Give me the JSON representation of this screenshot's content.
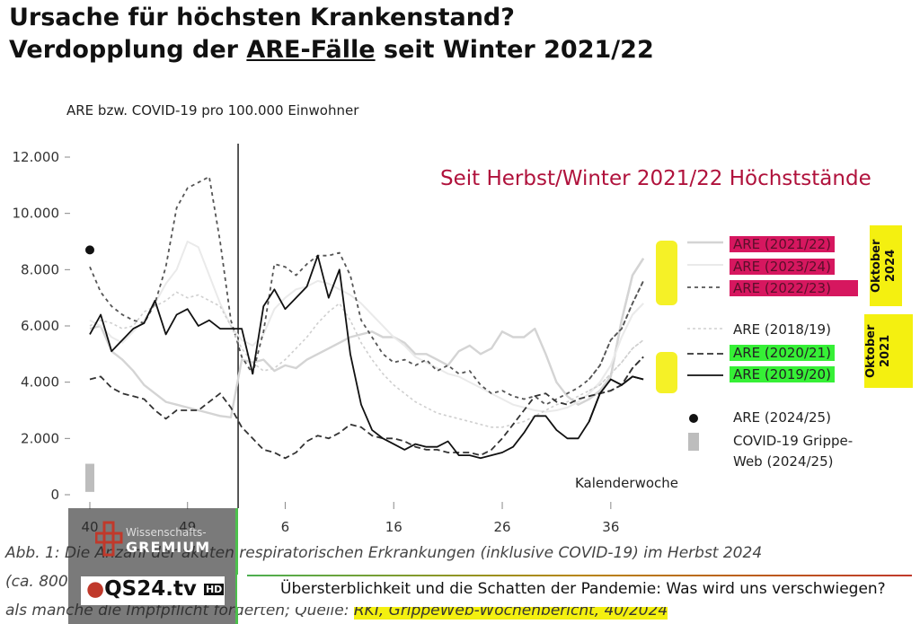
{
  "title": {
    "line1": "Ursache für höchsten Krankenstand?",
    "line2_prefix": "Verdopplung der ",
    "line2_underlined": "ARE-Fälle",
    "line2_suffix": " seit Winter 2021/22"
  },
  "chart_data": {
    "type": "line",
    "ylabel": "ARE bzw. COVID-19 pro 100.000 Einwohner",
    "xlabel": "Kalenderwoche",
    "annotation": "Seit Herbst/Winter 2021/22 Höchststände",
    "ylim": [
      0,
      12000
    ],
    "y_ticks": [
      "0",
      "2.000",
      "4.000",
      "6.000",
      "8.000",
      "10.000",
      "12.000"
    ],
    "x_ticks": [
      "40",
      "49",
      "6",
      "16",
      "26",
      "36"
    ],
    "x_tick_positions": [
      0,
      9,
      18,
      28,
      38,
      48
    ],
    "x_count": 52,
    "year_boundary_index": 13,
    "series": [
      {
        "name": "ARE (2021/22)",
        "color": "#d4d4d4",
        "dash": "",
        "width": 2.4,
        "values": [
          5900,
          6000,
          5100,
          4800,
          4400,
          3900,
          3600,
          3300,
          3200,
          3100,
          3000,
          2900,
          2800,
          2750,
          4800,
          4700,
          4800,
          4400,
          4600,
          4500,
          4800,
          5000,
          5200,
          5400,
          5600,
          5700,
          5800,
          5600,
          5600,
          5400,
          5000,
          5000,
          4800,
          4600,
          5100,
          5300,
          5000,
          5200,
          5800,
          5600,
          5600,
          5900,
          5000,
          4000,
          3500,
          3200,
          3400,
          3700,
          4200,
          6200,
          7800,
          8400
        ]
      },
      {
        "name": "ARE (2023/24)",
        "color": "#eaeaea",
        "dash": "",
        "width": 2,
        "values": [
          6200,
          6000,
          5600,
          5400,
          5800,
          6200,
          6800,
          7500,
          8000,
          9000,
          8800,
          7800,
          6800,
          6000,
          5500,
          5300,
          5700,
          6600,
          7000,
          7300,
          7400,
          7600,
          7500,
          7300,
          7100,
          6800,
          6400,
          6000,
          5600,
          5300,
          4900,
          4700,
          4500,
          4300,
          4200,
          4000,
          3800,
          3600,
          3400,
          3200,
          3100,
          3000,
          2950,
          3000,
          3100,
          3300,
          3600,
          4000,
          4600,
          5600,
          6400,
          6800
        ]
      },
      {
        "name": "ARE (2022/23)",
        "color": "#555555",
        "dash": "4 4",
        "width": 1.8,
        "values": [
          8100,
          7200,
          6700,
          6400,
          6200,
          6100,
          6800,
          8100,
          10200,
          10900,
          11100,
          11300,
          9000,
          6200,
          4900,
          4300,
          5800,
          8200,
          8100,
          7800,
          8200,
          8500,
          8500,
          8600,
          7800,
          6200,
          5600,
          5000,
          4700,
          4800,
          4600,
          4800,
          4400,
          4600,
          4300,
          4400,
          3900,
          3600,
          3700,
          3500,
          3400,
          3500,
          3200,
          3400,
          3600,
          3800,
          4100,
          4600,
          5500,
          5900,
          6800,
          7600
        ]
      },
      {
        "name": "ARE (2018/19)",
        "color": "#cfcfcf",
        "dash": "3 3",
        "width": 1.6,
        "values": [
          6000,
          6200,
          6100,
          5900,
          6000,
          6500,
          6700,
          6900,
          7200,
          7000,
          7100,
          6900,
          6700,
          6000,
          5200,
          4700,
          4400,
          4500,
          4800,
          5200,
          5600,
          6100,
          6500,
          6800,
          6200,
          5400,
          4800,
          4300,
          3900,
          3600,
          3300,
          3100,
          2900,
          2800,
          2700,
          2600,
          2500,
          2400,
          2400,
          2500,
          2600,
          2800,
          3000,
          3200,
          3300,
          3500,
          3700,
          3900,
          4300,
          4700,
          5200,
          5500
        ]
      },
      {
        "name": "ARE (2020/21)",
        "color": "#333333",
        "dash": "7 4",
        "width": 1.8,
        "values": [
          4100,
          4200,
          3800,
          3600,
          3500,
          3400,
          3000,
          2700,
          3000,
          3000,
          3000,
          3300,
          3600,
          3100,
          2400,
          2000,
          1600,
          1500,
          1300,
          1500,
          1900,
          2100,
          2000,
          2200,
          2500,
          2400,
          2100,
          2000,
          2000,
          1900,
          1700,
          1600,
          1600,
          1500,
          1500,
          1500,
          1400,
          1600,
          2000,
          2500,
          3000,
          3500,
          3600,
          3300,
          3200,
          3400,
          3500,
          3600,
          3700,
          3900,
          4500,
          4900
        ]
      },
      {
        "name": "ARE (2019/20)",
        "color": "#111111",
        "dash": "",
        "width": 1.8,
        "values": [
          5700,
          6400,
          5100,
          5500,
          5900,
          6100,
          6900,
          5700,
          6400,
          6600,
          6000,
          6200,
          5900,
          5900,
          5900,
          4300,
          6700,
          7300,
          6600,
          7000,
          7400,
          8500,
          7000,
          8000,
          5000,
          3200,
          2300,
          2000,
          1800,
          1600,
          1800,
          1700,
          1700,
          1900,
          1400,
          1400,
          1300,
          1400,
          1500,
          1700,
          2200,
          2800,
          2800,
          2300,
          2000,
          2000,
          2600,
          3600,
          4100,
          3900,
          4200,
          4100
        ]
      }
    ],
    "point_2024_25": {
      "name": "ARE (2024/25)",
      "x_index": 0,
      "value": 8700
    },
    "covid_2024_25": {
      "name": "COVID-19 Grippe-Web (2024/25)",
      "x_index": 0,
      "low": 100,
      "high": 1100
    }
  },
  "legend": {
    "items": [
      {
        "label": "ARE (2021/22)",
        "highlight": "pink"
      },
      {
        "label": "ARE (2023/24)",
        "highlight": "pink"
      },
      {
        "label": "ARE (2022/23)",
        "highlight": "pink"
      },
      {
        "label": "ARE (2018/19)",
        "highlight": "none"
      },
      {
        "label": "ARE (2020/21)",
        "highlight": "green"
      },
      {
        "label": "ARE (2019/20)",
        "highlight": "green"
      },
      {
        "label": "ARE (2024/25)",
        "highlight": "none"
      },
      {
        "label": "COVID-19 Grippe-",
        "highlight": "none"
      },
      {
        "label": "Web (2024/25)",
        "highlight": "none"
      }
    ],
    "oktober_2024": {
      "line1": "Oktober",
      "line2": "2024"
    },
    "oktober_2021": {
      "line1": "Oktober",
      "line2": "2021"
    }
  },
  "caption": {
    "line1": "Abb. 1: Die Anzahl der akuten respiratorischen Erkrankungen (inklusive COVID-19) im Herbst 2024",
    "line2": "(ca. 800",
    "line3_prefix": "als manche die Impfpflicht forderten; Quelle: ",
    "line3_source": "RKI, GrippeWeb-Wochenbericht, 40/2024"
  },
  "overlay": {
    "logo_small": "Wissenschafts-",
    "logo_big": "GREMIUM",
    "channel": "QS24.tv",
    "channel_hd": "HD",
    "ticker": "Übersterblichkeit und die Schatten der Pandemie: Was wird uns verschwiegen?"
  }
}
